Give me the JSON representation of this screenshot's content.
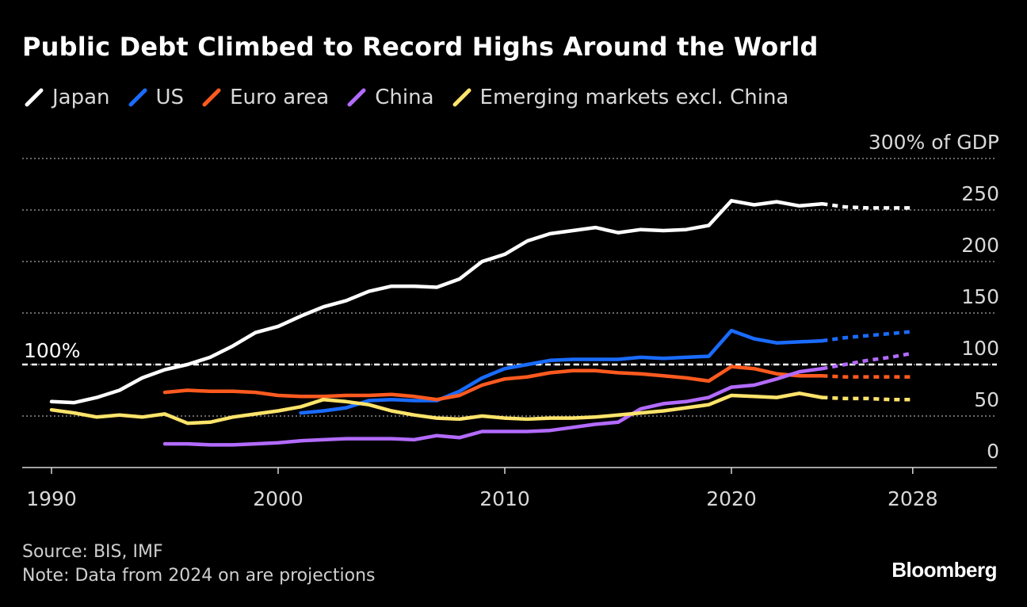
{
  "header": {
    "title": "Public Debt Climbed to Record Highs Around the World"
  },
  "footer": {
    "source": "Source: BIS, IMF",
    "note": "Note: Data from 2024 on are projections",
    "logo": "Bloomberg"
  },
  "chart_data": {
    "type": "line",
    "title": "Public Debt Climbed to Record Highs Around the World",
    "ylabel": "300% of GDP",
    "xlabel": "",
    "xlim": [
      1989,
      2032
    ],
    "ylim": [
      0,
      300
    ],
    "x_ticks": [
      1990,
      2000,
      2010,
      2020,
      2028
    ],
    "y_ticks": [
      {
        "value": 0,
        "label": "0"
      },
      {
        "value": 50,
        "label": "50"
      },
      {
        "value": 100,
        "label": "100"
      },
      {
        "value": 150,
        "label": "150"
      },
      {
        "value": 200,
        "label": "200"
      },
      {
        "value": 250,
        "label": "250"
      },
      {
        "value": 300,
        "label": "300% of GDP"
      }
    ],
    "reference_line": {
      "value": 100,
      "label": "100%"
    },
    "projection_start": 2024,
    "grid": true,
    "legend_position": "top-left",
    "series": [
      {
        "name": "Japan",
        "color": "#ffffff",
        "x": [
          1990,
          1991,
          1992,
          1993,
          1994,
          1995,
          1996,
          1997,
          1998,
          1999,
          2000,
          2001,
          2002,
          2003,
          2004,
          2005,
          2006,
          2007,
          2008,
          2009,
          2010,
          2011,
          2012,
          2013,
          2014,
          2015,
          2016,
          2017,
          2018,
          2019,
          2020,
          2021,
          2022,
          2023,
          2024,
          2025,
          2026,
          2027,
          2028
        ],
        "values": [
          64,
          63,
          68,
          75,
          87,
          95,
          100,
          107,
          118,
          131,
          137,
          147,
          156,
          162,
          171,
          176,
          176,
          175,
          183,
          200,
          207,
          220,
          227,
          230,
          233,
          228,
          231,
          230,
          231,
          235,
          259,
          255,
          258,
          254,
          256,
          253,
          252,
          252,
          252
        ]
      },
      {
        "name": "US",
        "color": "#1a6cff",
        "x": [
          2001,
          2002,
          2003,
          2004,
          2005,
          2006,
          2007,
          2008,
          2009,
          2010,
          2011,
          2012,
          2013,
          2014,
          2015,
          2016,
          2017,
          2018,
          2019,
          2020,
          2021,
          2022,
          2023,
          2024,
          2025,
          2026,
          2027,
          2028
        ],
        "values": [
          53,
          55,
          58,
          65,
          66,
          65,
          65,
          74,
          87,
          96,
          100,
          104,
          105,
          105,
          105,
          107,
          106,
          107,
          108,
          133,
          125,
          121,
          122,
          123,
          126,
          128,
          130,
          132
        ]
      },
      {
        "name": "Euro area",
        "color": "#ff5a1f",
        "x": [
          1995,
          1996,
          1997,
          1998,
          1999,
          2000,
          2001,
          2002,
          2003,
          2004,
          2005,
          2006,
          2007,
          2008,
          2009,
          2010,
          2011,
          2012,
          2013,
          2014,
          2015,
          2016,
          2017,
          2018,
          2019,
          2020,
          2021,
          2022,
          2023,
          2024,
          2025,
          2026,
          2027,
          2028
        ],
        "values": [
          73,
          75,
          74,
          74,
          73,
          70,
          69,
          69,
          70,
          70,
          71,
          69,
          66,
          70,
          80,
          86,
          88,
          92,
          94,
          94,
          92,
          91,
          89,
          87,
          84,
          98,
          96,
          91,
          89,
          89,
          88,
          88,
          88,
          88
        ]
      },
      {
        "name": "China",
        "color": "#b36bff",
        "x": [
          1995,
          1996,
          1997,
          1998,
          1999,
          2000,
          2001,
          2002,
          2003,
          2004,
          2005,
          2006,
          2007,
          2008,
          2009,
          2010,
          2011,
          2012,
          2013,
          2014,
          2015,
          2016,
          2017,
          2018,
          2019,
          2020,
          2021,
          2022,
          2023,
          2024,
          2025,
          2026,
          2027,
          2028
        ],
        "values": [
          23,
          23,
          22,
          22,
          23,
          24,
          26,
          27,
          28,
          28,
          28,
          27,
          31,
          29,
          35,
          35,
          35,
          36,
          39,
          42,
          44,
          57,
          62,
          64,
          68,
          78,
          80,
          86,
          93,
          96,
          100,
          104,
          107,
          111
        ]
      },
      {
        "name": "Emerging markets excl. China",
        "color": "#ffe46b",
        "x": [
          1990,
          1991,
          1992,
          1993,
          1994,
          1995,
          1996,
          1997,
          1998,
          1999,
          2000,
          2001,
          2002,
          2003,
          2004,
          2005,
          2006,
          2007,
          2008,
          2009,
          2010,
          2011,
          2012,
          2013,
          2014,
          2015,
          2016,
          2017,
          2018,
          2019,
          2020,
          2021,
          2022,
          2023,
          2024,
          2025,
          2026,
          2027,
          2028
        ],
        "values": [
          56,
          53,
          49,
          51,
          49,
          52,
          43,
          44,
          49,
          52,
          55,
          59,
          66,
          64,
          61,
          55,
          51,
          48,
          47,
          50,
          48,
          47,
          48,
          48,
          49,
          51,
          53,
          55,
          58,
          61,
          70,
          69,
          68,
          72,
          68,
          67,
          67,
          66,
          66
        ]
      }
    ]
  },
  "legend_icon": "diagonal-stroke"
}
